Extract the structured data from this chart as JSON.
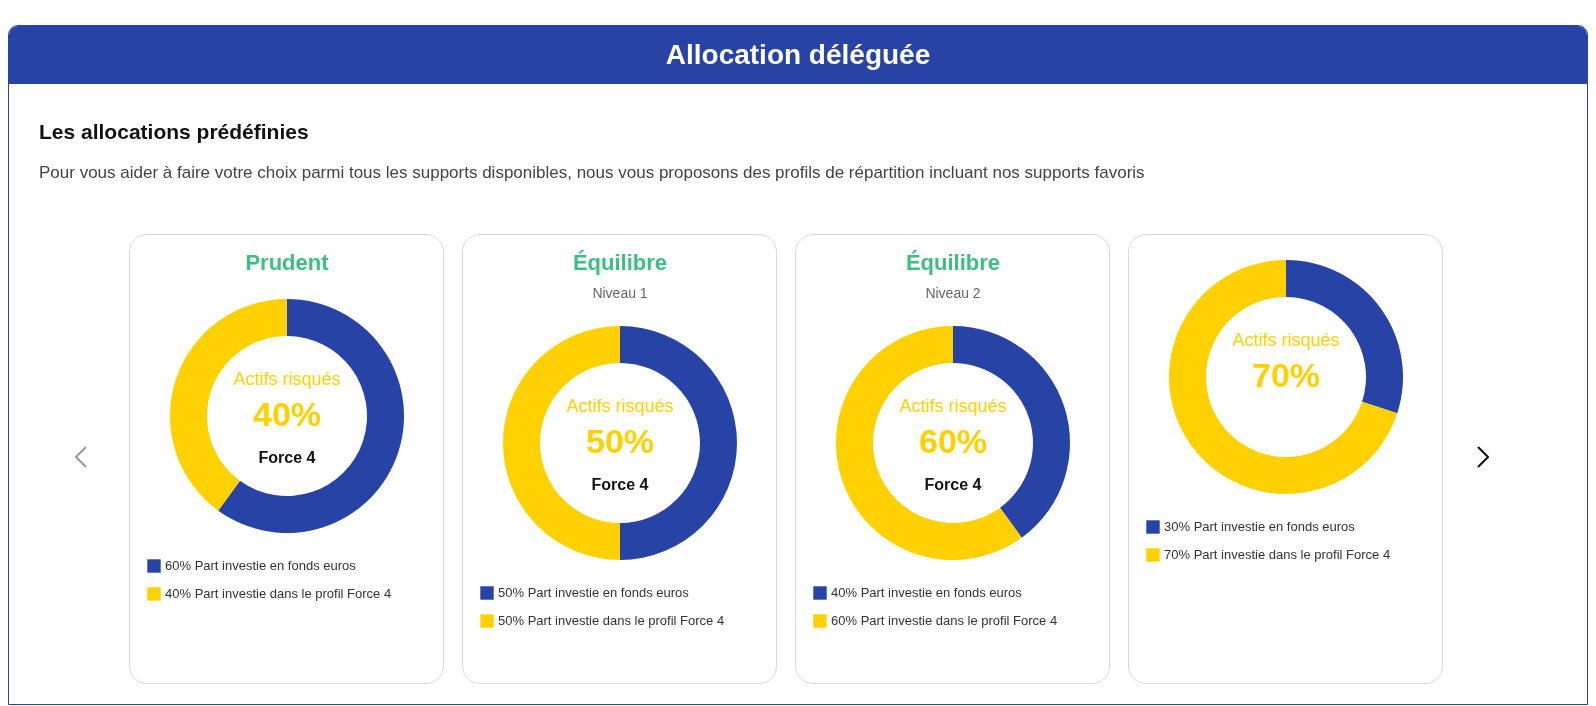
{
  "chart_data": [
    {
      "type": "other",
      "title": "Allocation déléguée",
      "subtitle": "Les allocations prédéfinies",
      "annotations": [
        "Pour vous aider à faire votre choix parmi tous les supports disponibles, nous vous proposons des profils de répartition incluant nos supports favoris"
      ]
    },
    {
      "type": "donut",
      "title": "Prudent",
      "categories": [
        "Part investie en fonds euros",
        "Part investie dans le profil Force 4"
      ],
      "values": [
        60,
        40
      ],
      "value_labels": [
        "60%",
        "40%"
      ],
      "colors": [
        "#2743a6",
        "#ffd100"
      ],
      "legend": "bottom",
      "annotations": [
        "Actifs risqués",
        "40%",
        "Force 4"
      ]
    },
    {
      "type": "donut",
      "title": "Équilibre",
      "subtitle": "Niveau 1",
      "categories": [
        "Part investie en fonds euros",
        "Part investie dans le profil Force 4"
      ],
      "values": [
        50,
        50
      ],
      "value_labels": [
        "50%",
        "50%"
      ],
      "colors": [
        "#2743a6",
        "#ffd100"
      ],
      "legend": "bottom",
      "annotations": [
        "Actifs risqués",
        "50%",
        "Force 4"
      ]
    },
    {
      "type": "donut",
      "title": "Équilibre",
      "subtitle": "Niveau 2",
      "categories": [
        "Part investie en fonds euros",
        "Part investie dans le profil Force 4"
      ],
      "values": [
        40,
        60
      ],
      "value_labels": [
        "40%",
        "60%"
      ],
      "colors": [
        "#2743a6",
        "#ffd100"
      ],
      "legend": "bottom",
      "annotations": [
        "Actifs risqués",
        "60%",
        "Force 4"
      ]
    },
    {
      "type": "donut",
      "categories": [
        "Part investie en fonds euros",
        "Part investie dans le profil Force 4"
      ],
      "values": [
        30,
        70
      ],
      "value_labels": [
        "30%",
        "70%"
      ],
      "colors": [
        "#2743a6",
        "#ffd100"
      ],
      "legend": "bottom",
      "annotations": [
        "Actifs risqués",
        "70%"
      ]
    }
  ]
}
